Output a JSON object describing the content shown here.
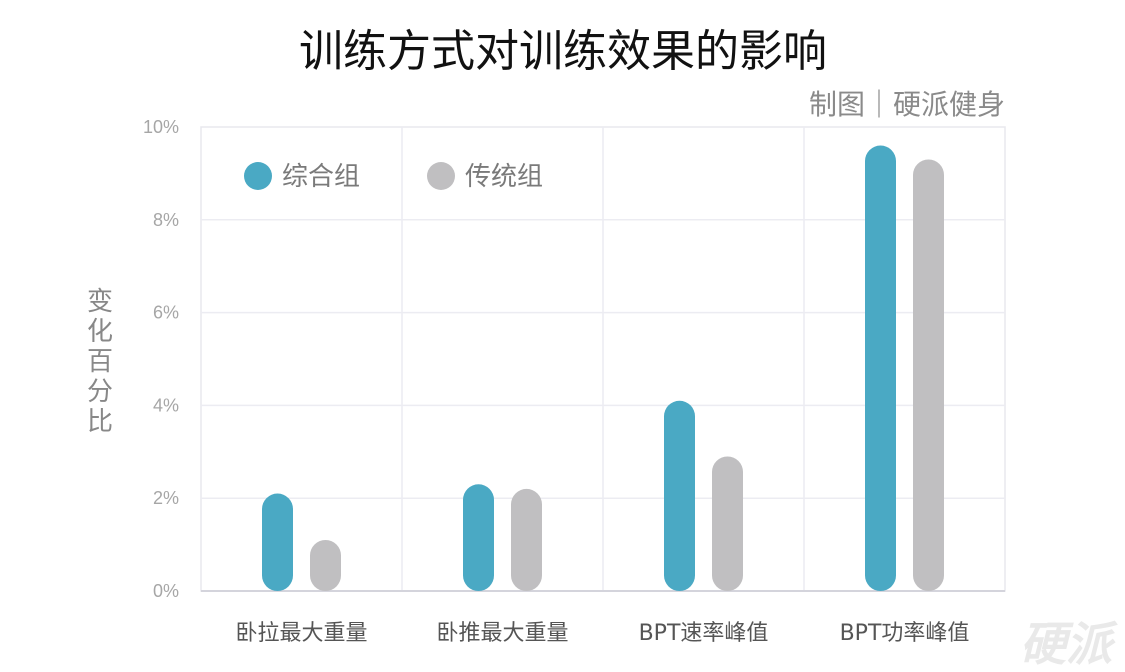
{
  "chart_data": {
    "type": "bar",
    "title": "训练方式对训练效果的影响",
    "subtitle": "制图｜硬派健身",
    "ylabel": "变化百分比",
    "xlabel": "",
    "ylim": [
      0,
      10
    ],
    "yticks": [
      0,
      2,
      4,
      6,
      8,
      10
    ],
    "ytick_labels": [
      "0%",
      "2%",
      "4%",
      "6%",
      "8%",
      "10%"
    ],
    "categories": [
      "卧拉最大重量",
      "卧推最大重量",
      "BPT速率峰值",
      "BPT功率峰值"
    ],
    "series": [
      {
        "name": "综合组",
        "values": [
          2.1,
          2.3,
          4.1,
          9.6
        ],
        "color": "#4aa9c4"
      },
      {
        "name": "传统组",
        "values": [
          1.1,
          2.2,
          2.9,
          9.3
        ],
        "color": "#c0bfc1"
      }
    ],
    "grid": true,
    "legend_position": "top-left",
    "watermark": "硬派"
  }
}
